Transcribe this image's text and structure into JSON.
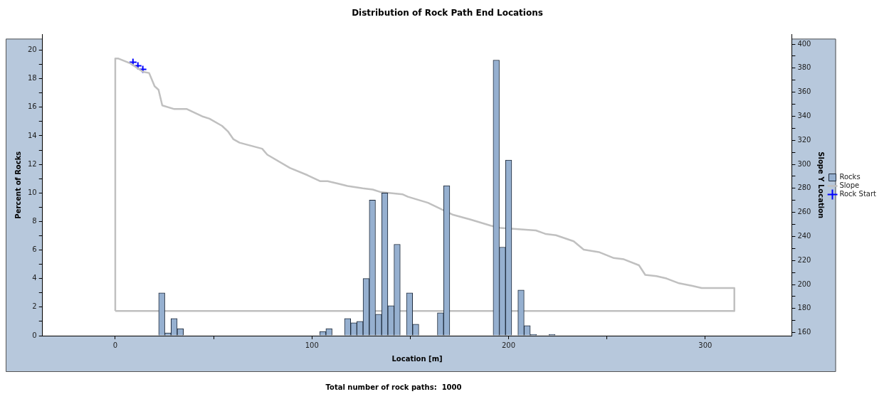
{
  "chart_data": {
    "type": "histogram",
    "title": "Distribution of Rock Path End Locations",
    "xlabel": "Location [m]",
    "ylabel": "Percent of Rocks",
    "y2label": "Slope Y Location",
    "annotations": [
      "Total number of rock paths:  1000"
    ],
    "bins": [
      22.05,
      25.2,
      28.35,
      31.5,
      34.65,
      37.8,
      40.95,
      44.1,
      47.25,
      50.4,
      53.55,
      56.7,
      59.85,
      63,
      66.15,
      69.3,
      72.45,
      75.6,
      78.75,
      81.9,
      85.05,
      88.2,
      91.35,
      94.5,
      97.65,
      100.8,
      103.95,
      107.1,
      110.25,
      113.4,
      116.55,
      119.7,
      122.85,
      126,
      129.15,
      132.3,
      135.45,
      138.6,
      141.75,
      144.9,
      148.05,
      151.2,
      154.35,
      157.5,
      160.65,
      163.8,
      166.95,
      170.1,
      173.25,
      176.4,
      179.55,
      182.7,
      185.85,
      189,
      192.15,
      195.3,
      198.45,
      201.6,
      204.75,
      207.9,
      211.05,
      214.2,
      217.35,
      220.5,
      223.65
    ],
    "series": [
      {
        "name": "Rocks",
        "color": "#96b0d0",
        "values": [
          3.0,
          0.2,
          1.2,
          0.5,
          0,
          0,
          0,
          0,
          0,
          0,
          0,
          0,
          0,
          0,
          0,
          0,
          0,
          0,
          0,
          0,
          0,
          0,
          0,
          0,
          0,
          0,
          0.3,
          0.5,
          0,
          0,
          1.2,
          0.9,
          1.0,
          4.0,
          9.5,
          1.5,
          10.0,
          2.1,
          6.4,
          0,
          3.0,
          0.8,
          0,
          0,
          0,
          1.6,
          10.5,
          0,
          0,
          0,
          0,
          0,
          0,
          0,
          19.3,
          6.2,
          12.3,
          0,
          3.2,
          0.7,
          0.1,
          0,
          0,
          0.1
        ]
      },
      {
        "name": "Slope",
        "type": "line",
        "axis": "y2",
        "color": "#c0c0c0",
        "x": [
          0,
          0,
          1.6,
          7.7,
          14.1,
          17.2,
          20.0,
          22.0,
          23.9,
          30.0,
          36.4,
          44.1,
          47.9,
          54.3,
          57.5,
          60.0,
          63.2,
          74.7,
          77.3,
          88.8,
          97.7,
          104.1,
          108.0,
          113.0,
          118.1,
          125.8,
          130.9,
          134.7,
          146.2,
          148.8,
          159.0,
          165.4,
          171.8,
          180.7,
          190.9,
          196.0,
          205.0,
          213.9,
          219.0,
          224.1,
          233.1,
          238.2,
          245.9,
          253.5,
          258.6,
          266.3,
          269.5,
          275.2,
          280.3,
          286.7,
          293.1,
          298.2,
          314.8,
          314.8
        ],
        "values": [
          178,
          388,
          388,
          384,
          377,
          376,
          365,
          362,
          349,
          346,
          346,
          340,
          338,
          332,
          327,
          321,
          318,
          313,
          308,
          297,
          291,
          286,
          286,
          284,
          282,
          280,
          279,
          277,
          275,
          273,
          268,
          263,
          258,
          254,
          249,
          247,
          246,
          245,
          242,
          241,
          236,
          229,
          227,
          222,
          221,
          216,
          208,
          207,
          205,
          201,
          199,
          197,
          197,
          178
        ]
      },
      {
        "type": "line",
        "axis": "y2",
        "color": "#c0c0c0",
        "x": [
          0,
          314.8
        ],
        "values": [
          178,
          178
        ]
      },
      {
        "name": "Rock Start",
        "type": "scatter",
        "axis": "y2",
        "color": "#0000ff",
        "marker": "cross",
        "x": [
          9,
          11.5,
          14
        ],
        "values": [
          385,
          382,
          379
        ]
      }
    ],
    "xlim": [
      -37,
      344
    ],
    "xticks": [
      0,
      {
        "value": 50,
        "label": null
      },
      100,
      {
        "value": 150,
        "label": null
      },
      200,
      {
        "value": 250,
        "label": null
      },
      300
    ],
    "ylim": [
      0,
      21.1
    ],
    "yticks": [
      0,
      {
        "value": 1,
        "label": null
      },
      2,
      {
        "value": 3,
        "label": null
      },
      4,
      {
        "value": 5,
        "label": null
      },
      6,
      {
        "value": 7,
        "label": null
      },
      8,
      {
        "value": 9,
        "label": null
      },
      10,
      {
        "value": 11,
        "label": null
      },
      12,
      {
        "value": 13,
        "label": null
      },
      14,
      {
        "value": 15,
        "label": null
      },
      16,
      {
        "value": 17,
        "label": null
      },
      18,
      {
        "value": 19,
        "label": null
      },
      20
    ],
    "y2lim": [
      157.4,
      408.1
    ],
    "y2ticks": [
      160,
      {
        "value": 170,
        "label": null
      },
      180,
      {
        "value": 190,
        "label": null
      },
      200,
      {
        "value": 210,
        "label": null
      },
      220,
      {
        "value": 230,
        "label": null
      },
      240,
      {
        "value": 250,
        "label": null
      },
      260,
      {
        "value": 270,
        "label": null
      },
      280,
      {
        "value": 290,
        "label": null
      },
      300,
      {
        "value": 310,
        "label": null
      },
      320,
      {
        "value": 330,
        "label": null
      },
      340,
      {
        "value": 350,
        "label": null
      },
      360,
      {
        "value": 370,
        "label": null
      },
      380,
      {
        "value": 390,
        "label": null
      },
      400
    ],
    "grid": false,
    "legend": "right"
  }
}
